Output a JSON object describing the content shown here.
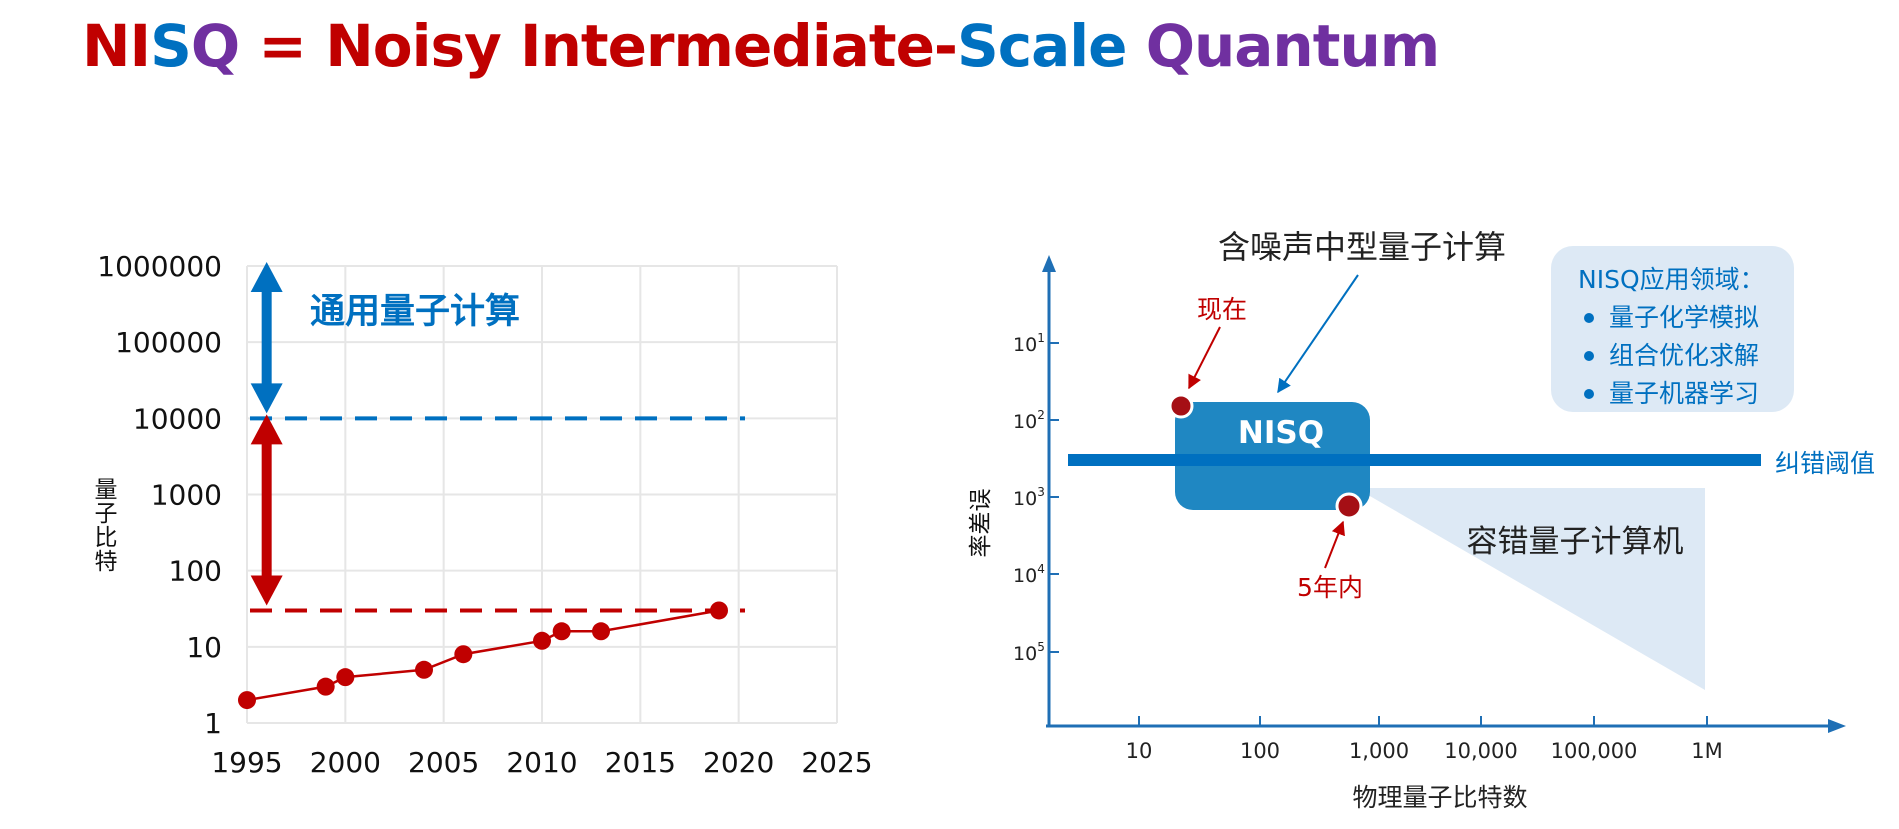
{
  "title": {
    "parts": [
      {
        "text": "NI",
        "color": "#c00000"
      },
      {
        "text": "S",
        "color": "#0070c0"
      },
      {
        "text": "Q",
        "color": "#7030a0"
      },
      {
        "text": " = Noisy Intermediate-",
        "color": "#c00000"
      },
      {
        "text": "Scale ",
        "color": "#0070c0"
      },
      {
        "text": "Quantum",
        "color": "#7030a0"
      }
    ]
  },
  "colors": {
    "red": "#c00000",
    "blue": "#0070c0",
    "nisq_box": "#1f87c2",
    "region": "#dde9f5",
    "grid": "#e6e6e6"
  },
  "chart_data": [
    {
      "type": "line",
      "ylabel": "量子比特",
      "xlabel": "",
      "xlim": [
        1995,
        2025
      ],
      "x_ticks": [
        1995,
        2000,
        2005,
        2010,
        2015,
        2020,
        2025
      ],
      "y_scale": "log",
      "ylim": [
        1,
        1000000
      ],
      "y_ticks": [
        "1",
        "10",
        "100",
        "1000",
        "10000",
        "100000",
        "1000000"
      ],
      "grid": true,
      "series": [
        {
          "x": [
            1995,
            1999,
            2000,
            2004,
            2006,
            2010,
            2011,
            2013,
            2019
          ],
          "y": [
            2,
            3,
            4,
            5,
            8,
            12,
            16,
            16,
            30
          ]
        }
      ],
      "reference_lines": [
        {
          "y": 10000,
          "style": "dashed",
          "color": "#0070c0"
        },
        {
          "y": 30,
          "style": "dashed",
          "color": "#c00000"
        }
      ],
      "arrows": [
        {
          "x": 1996,
          "from": 10000,
          "to": 1000000,
          "color": "#0070c0"
        },
        {
          "x": 1996,
          "from": 30,
          "to": 10000,
          "color": "#c00000"
        }
      ],
      "annotations": [
        {
          "text": "通用量子计算",
          "color": "#0070c0"
        }
      ]
    },
    {
      "type": "diagram",
      "title": "含噪声中型量子计算",
      "xlabel": "物理量子比特数",
      "ylabel": "误差率",
      "x_scale": "log",
      "x_ticks": [
        "10",
        "100",
        "1,000",
        "10,000",
        "100,000",
        "1M"
      ],
      "y_ticks": [
        {
          "base": "10",
          "exp": "1"
        },
        {
          "base": "10",
          "exp": "2"
        },
        {
          "base": "10",
          "exp": "3"
        },
        {
          "base": "10",
          "exp": "4"
        },
        {
          "base": "10",
          "exp": "5"
        }
      ],
      "nisq_label": "NISQ",
      "threshold_label": "纠错阈值",
      "fault_tolerant_label": "容错量子计算机",
      "now_label": "现在",
      "five_years_label": "5年内",
      "applications": {
        "heading": "NISQ应用领域：",
        "items": [
          "量子化学模拟",
          "组合优化求解",
          "量子机器学习"
        ]
      }
    }
  ]
}
